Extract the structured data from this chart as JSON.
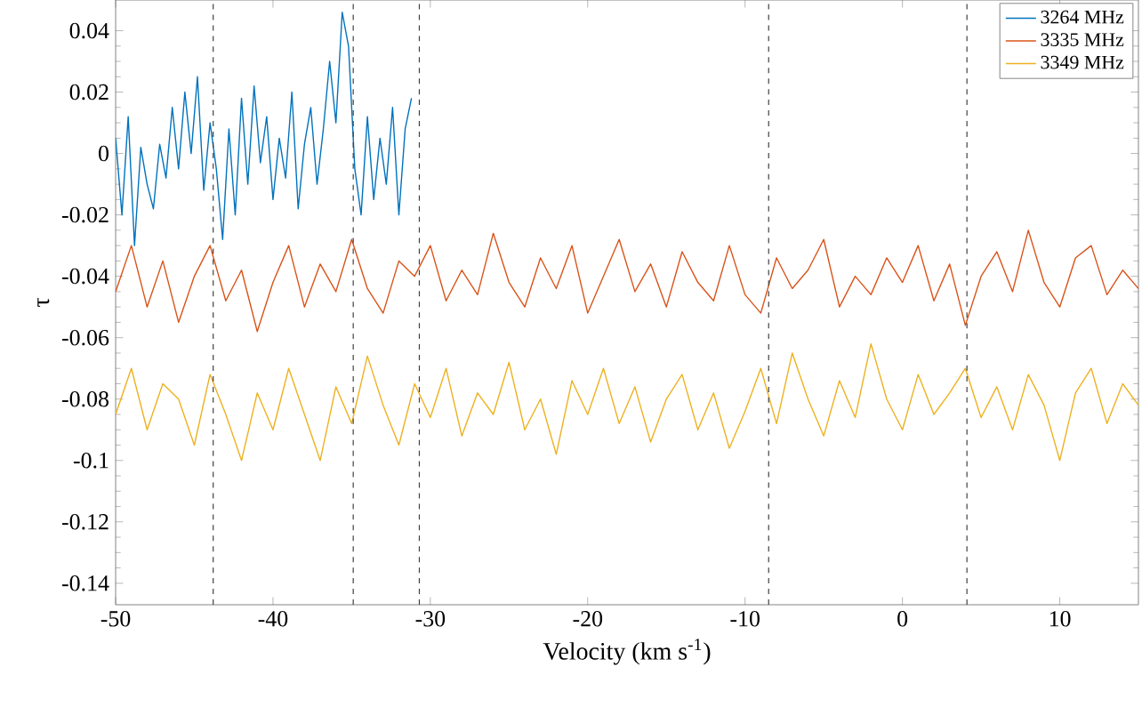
{
  "chart_data": {
    "type": "line",
    "xlabel": "Velocity (km s$^{-1}$)",
    "ylabel": "τ",
    "xlim": [
      -50,
      15
    ],
    "ylim": [
      -0.147,
      0.05
    ],
    "xticks": [
      -50,
      -40,
      -30,
      -20,
      -10,
      0,
      10
    ],
    "yticks": [
      -0.14,
      -0.12,
      -0.1,
      -0.08,
      -0.06,
      -0.04,
      -0.02,
      0,
      0.02,
      0.04
    ],
    "legend": "top right",
    "line_style": "solid",
    "marker": "none",
    "grid": false,
    "ref_lines": [
      {
        "axis": "x",
        "value": -43.8,
        "color": "#404040",
        "line_style": "dashed"
      },
      {
        "axis": "x",
        "value": -34.9,
        "color": "#404040",
        "line_style": "dashed"
      },
      {
        "axis": "x",
        "value": -30.7,
        "color": "#404040",
        "line_style": "dashed"
      },
      {
        "axis": "x",
        "value": -8.5,
        "color": "#404040",
        "line_style": "dashed"
      },
      {
        "axis": "x",
        "value": 4.1,
        "color": "#404040",
        "line_style": "dashed"
      }
    ],
    "series": [
      {
        "name": "3264 MHz",
        "color": "#0072bd",
        "x": [
          -50,
          -49.6,
          -49.2,
          -48.8,
          -48.4,
          -48,
          -47.6,
          -47.2,
          -46.8,
          -46.4,
          -46,
          -45.6,
          -45.2,
          -44.8,
          -44.4,
          -44,
          -43.6,
          -43.2,
          -42.8,
          -42.4,
          -42,
          -41.6,
          -41.2,
          -40.8,
          -40.4,
          -40,
          -39.6,
          -39.2,
          -38.8,
          -38.4,
          -38,
          -37.6,
          -37.2,
          -36.8,
          -36.4,
          -36,
          -35.6,
          -35.2,
          -34.8,
          -34.4,
          -34,
          -33.6,
          -33.2,
          -32.8,
          -32.4,
          -32,
          -31.6,
          -31.2
        ],
        "values": [
          0.005,
          -0.02,
          0.012,
          -0.03,
          0.002,
          -0.01,
          -0.018,
          0.003,
          -0.008,
          0.015,
          -0.005,
          0.02,
          0.0,
          0.025,
          -0.012,
          0.01,
          -0.005,
          -0.028,
          0.008,
          -0.02,
          0.018,
          -0.01,
          0.022,
          -0.003,
          0.012,
          -0.015,
          0.005,
          -0.008,
          0.02,
          -0.018,
          0.003,
          0.015,
          -0.01,
          0.008,
          0.03,
          0.01,
          0.046,
          0.035,
          -0.005,
          -0.02,
          0.012,
          -0.015,
          0.005,
          -0.01,
          0.015,
          -0.02,
          0.008,
          0.018
        ]
      },
      {
        "name": "3335 MHz",
        "color": "#d95319",
        "x": [
          -50,
          -49,
          -48,
          -47,
          -46,
          -45,
          -44,
          -43,
          -42,
          -41,
          -40,
          -39,
          -38,
          -37,
          -36,
          -35,
          -34,
          -33,
          -32,
          -31,
          -30,
          -29,
          -28,
          -27,
          -26,
          -25,
          -24,
          -23,
          -22,
          -21,
          -20,
          -19,
          -18,
          -17,
          -16,
          -15,
          -14,
          -13,
          -12,
          -11,
          -10,
          -9,
          -8,
          -7,
          -6,
          -5,
          -4,
          -3,
          -2,
          -1,
          0,
          1,
          2,
          3,
          4,
          5,
          6,
          7,
          8,
          9,
          10,
          11,
          12,
          13,
          14,
          15
        ],
        "values": [
          -0.045,
          -0.03,
          -0.05,
          -0.035,
          -0.055,
          -0.04,
          -0.03,
          -0.048,
          -0.038,
          -0.058,
          -0.042,
          -0.03,
          -0.05,
          -0.036,
          -0.045,
          -0.028,
          -0.044,
          -0.052,
          -0.035,
          -0.04,
          -0.03,
          -0.048,
          -0.038,
          -0.046,
          -0.026,
          -0.042,
          -0.05,
          -0.034,
          -0.044,
          -0.03,
          -0.052,
          -0.04,
          -0.028,
          -0.045,
          -0.036,
          -0.05,
          -0.032,
          -0.042,
          -0.048,
          -0.03,
          -0.046,
          -0.052,
          -0.034,
          -0.044,
          -0.038,
          -0.028,
          -0.05,
          -0.04,
          -0.046,
          -0.034,
          -0.042,
          -0.03,
          -0.048,
          -0.036,
          -0.056,
          -0.04,
          -0.032,
          -0.045,
          -0.025,
          -0.042,
          -0.05,
          -0.034,
          -0.03,
          -0.046,
          -0.038,
          -0.044
        ]
      },
      {
        "name": "3349 MHz",
        "color": "#edb120",
        "x": [
          -50,
          -49,
          -48,
          -47,
          -46,
          -45,
          -44,
          -43,
          -42,
          -41,
          -40,
          -39,
          -38,
          -37,
          -36,
          -35,
          -34,
          -33,
          -32,
          -31,
          -30,
          -29,
          -28,
          -27,
          -26,
          -25,
          -24,
          -23,
          -22,
          -21,
          -20,
          -19,
          -18,
          -17,
          -16,
          -15,
          -14,
          -13,
          -12,
          -11,
          -10,
          -9,
          -8,
          -7,
          -6,
          -5,
          -4,
          -3,
          -2,
          -1,
          0,
          1,
          2,
          3,
          4,
          5,
          6,
          7,
          8,
          9,
          10,
          11,
          12,
          13,
          14,
          15
        ],
        "values": [
          -0.085,
          -0.07,
          -0.09,
          -0.075,
          -0.08,
          -0.095,
          -0.072,
          -0.085,
          -0.1,
          -0.078,
          -0.09,
          -0.07,
          -0.085,
          -0.1,
          -0.076,
          -0.088,
          -0.066,
          -0.082,
          -0.095,
          -0.075,
          -0.086,
          -0.07,
          -0.092,
          -0.078,
          -0.085,
          -0.068,
          -0.09,
          -0.08,
          -0.098,
          -0.074,
          -0.085,
          -0.07,
          -0.088,
          -0.076,
          -0.094,
          -0.08,
          -0.072,
          -0.09,
          -0.078,
          -0.096,
          -0.084,
          -0.07,
          -0.088,
          -0.065,
          -0.08,
          -0.092,
          -0.074,
          -0.086,
          -0.062,
          -0.08,
          -0.09,
          -0.072,
          -0.085,
          -0.078,
          -0.07,
          -0.086,
          -0.076,
          -0.09,
          -0.072,
          -0.082,
          -0.1,
          -0.078,
          -0.07,
          -0.088,
          -0.075,
          -0.082
        ]
      }
    ]
  }
}
